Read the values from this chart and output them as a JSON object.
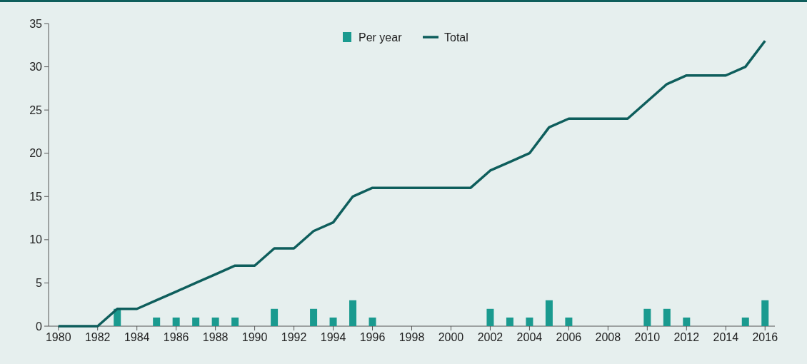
{
  "chart_data": {
    "type": "bar",
    "x": [
      1980,
      1981,
      1982,
      1983,
      1984,
      1985,
      1986,
      1987,
      1988,
      1989,
      1990,
      1991,
      1992,
      1993,
      1994,
      1995,
      1996,
      1997,
      1998,
      1999,
      2000,
      2001,
      2002,
      2003,
      2004,
      2005,
      2006,
      2007,
      2008,
      2009,
      2010,
      2011,
      2012,
      2013,
      2014,
      2015,
      2016
    ],
    "series": [
      {
        "name": "Per year",
        "color": "#1a9a8f",
        "values": [
          null,
          null,
          null,
          2,
          null,
          1,
          1,
          1,
          1,
          1,
          null,
          2,
          null,
          2,
          1,
          3,
          1,
          null,
          null,
          null,
          null,
          null,
          2,
          1,
          1,
          3,
          1,
          null,
          null,
          null,
          2,
          2,
          1,
          null,
          null,
          1,
          3
        ]
      },
      {
        "name": "Total",
        "type": "line",
        "color": "#0e5e5c",
        "values": [
          0,
          0,
          0,
          2,
          2,
          3,
          4,
          5,
          6,
          7,
          7,
          9,
          9,
          11,
          12,
          15,
          16,
          16,
          16,
          16,
          16,
          16,
          18,
          19,
          20,
          23,
          24,
          24,
          24,
          24,
          26,
          28,
          29,
          29,
          29,
          30,
          33
        ]
      }
    ],
    "xlim": [
      1979.5,
      2016.5
    ],
    "xticks": [
      1980,
      1982,
      1984,
      1986,
      1988,
      1990,
      1992,
      1994,
      1996,
      1998,
      2000,
      2002,
      2004,
      2006,
      2008,
      2010,
      2012,
      2014,
      2016
    ],
    "ylim": [
      0,
      35
    ],
    "yticks": [
      0,
      5,
      10,
      15,
      20,
      25,
      30,
      35
    ],
    "legend": "top",
    "marker": "none",
    "line_style": "solid"
  }
}
